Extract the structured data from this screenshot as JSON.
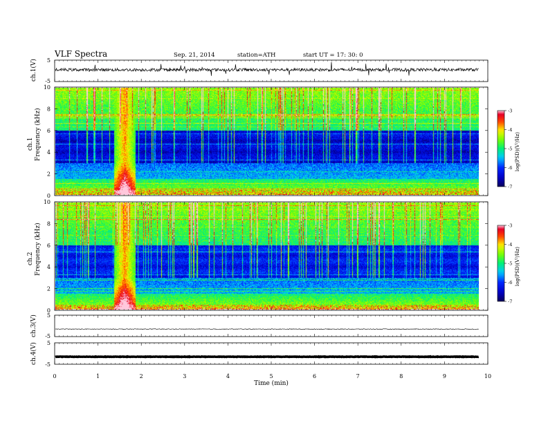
{
  "header": {
    "title": "VLF  Spectra",
    "date": "Sep. 21, 2014",
    "station": "station=ATH",
    "start": "start  UT  =   17: 30: 0"
  },
  "chart_data": [
    {
      "type": "line",
      "panel": "ch1-waveform",
      "ylabel": "ch.1(V)",
      "ylim": [
        -5,
        5
      ],
      "yticks": [
        "5",
        "-5"
      ],
      "description_of_series": "noisy waveform around +0.5 V with spikes",
      "baseline": 0.5,
      "xlim": [
        0,
        9.8
      ]
    },
    {
      "type": "heatmap",
      "panel": "ch1-spectrogram",
      "ylabel_top": "ch.1",
      "ylabel": "Frequency  (kHz)",
      "ylim": [
        0,
        10
      ],
      "yticks": [
        "0",
        "2",
        "4",
        "6",
        "8",
        "10"
      ],
      "xlim": [
        0,
        9.8
      ],
      "colorbar": {
        "label": "log(PSD)(V²/Hz)",
        "ticks": [
          "-3",
          "-4",
          "-5",
          "-6",
          "-7"
        ],
        "range": [
          -7,
          -3
        ]
      },
      "features": {
        "broadband_burst_min": [
          1.35,
          1.85
        ],
        "low_freq_band_kHz": [
          0,
          1.2
        ]
      }
    },
    {
      "type": "heatmap",
      "panel": "ch2-spectrogram",
      "ylabel_top": "ch.2",
      "ylabel": "Frequency  (kHz)",
      "ylim": [
        0,
        10
      ],
      "yticks": [
        "0",
        "2",
        "4",
        "6",
        "8",
        "10"
      ],
      "xlim": [
        0,
        9.8
      ],
      "colorbar": {
        "label": "log(PSD)(V²/Hz)",
        "ticks": [
          "-3",
          "-4",
          "-5",
          "-6",
          "-7"
        ],
        "range": [
          -7,
          -3
        ]
      },
      "features": {
        "broadband_burst_min": [
          1.35,
          1.85
        ],
        "low_freq_band_kHz": [
          0,
          1.5
        ]
      }
    },
    {
      "type": "line",
      "panel": "ch3-waveform",
      "ylabel": "ch.3(V)",
      "ylim": [
        -5,
        5
      ],
      "yticks": [
        "5",
        "-5"
      ],
      "baseline": -1.5,
      "xlim": [
        0,
        9.8
      ]
    },
    {
      "type": "line",
      "panel": "ch4-waveform",
      "ylabel": "ch.4(V)",
      "ylim": [
        -5,
        5
      ],
      "yticks": [
        "5",
        "-5"
      ],
      "baseline": -1.5,
      "xlim": [
        0,
        9.8
      ]
    }
  ],
  "xaxis": {
    "label": "Time  (min)",
    "ticks": [
      "0",
      "1",
      "2",
      "3",
      "4",
      "5",
      "6",
      "7",
      "8",
      "9",
      "10"
    ],
    "range": [
      0,
      10
    ]
  }
}
